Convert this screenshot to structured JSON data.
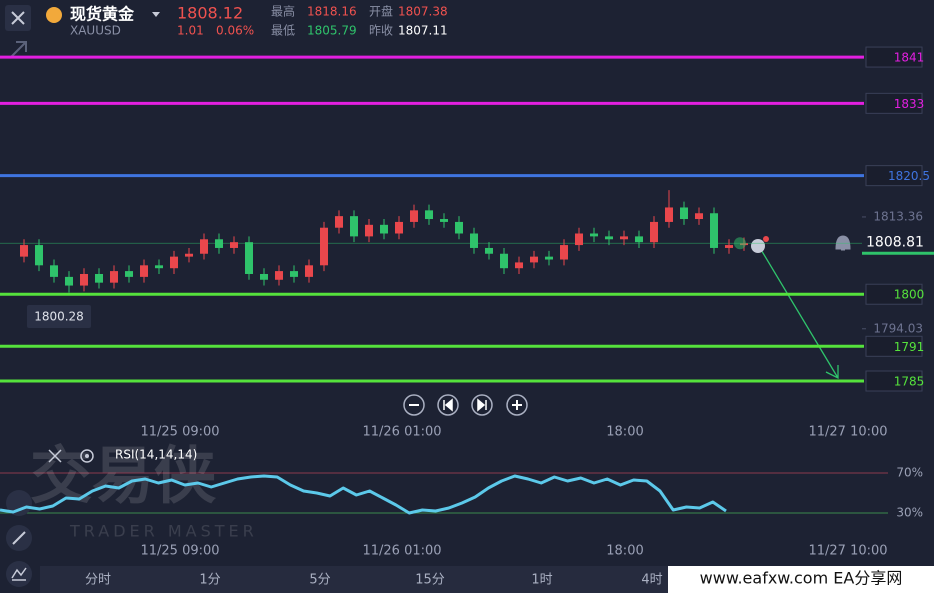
{
  "header": {
    "name": "现货黄金",
    "symbol": "XAUUSD",
    "price": "1808.12",
    "change": "1.01",
    "change_pct": "0.06%",
    "stats": [
      {
        "label": "最高",
        "value": "1818.16"
      },
      {
        "label": "开盘",
        "value": "1807.38"
      },
      {
        "label": "最低",
        "value": "1805.79"
      },
      {
        "label": "昨收",
        "value": "1807.11"
      }
    ]
  },
  "chart_data": [
    {
      "type": "candlestick",
      "open": [
        1806.5,
        1808.5,
        1805,
        1803,
        1801.5,
        1803.5,
        1802,
        1804,
        1803,
        1805,
        1804.5,
        1806.5,
        1807,
        1809.5,
        1808,
        1809,
        1803.5,
        1802.5,
        1804,
        1803,
        1805,
        1811.5,
        1813.5,
        1810,
        1812,
        1810.5,
        1812.5,
        1814.5,
        1813,
        1812.5,
        1810.5,
        1808,
        1807,
        1804.5,
        1805.5,
        1806.5,
        1806,
        1808.5,
        1810.5,
        1810,
        1809.5,
        1810,
        1809,
        1812.5,
        1815,
        1813,
        1814,
        1808,
        1808.5
      ],
      "high": [
        1809.5,
        1809.5,
        1806,
        1804,
        1804.5,
        1804.5,
        1805,
        1805,
        1806,
        1806,
        1807.5,
        1808,
        1810.5,
        1810.5,
        1810,
        1810,
        1804.5,
        1805,
        1805,
        1806,
        1812.5,
        1814.5,
        1814.5,
        1813,
        1813,
        1813.5,
        1815.5,
        1815.5,
        1814,
        1813.5,
        1811.5,
        1809,
        1808,
        1806.5,
        1807.5,
        1807.5,
        1809.5,
        1811.5,
        1811.5,
        1811,
        1811,
        1811,
        1813.5,
        1818,
        1816,
        1815,
        1815,
        1809.5,
        1809.8
      ],
      "low": [
        1805.5,
        1804,
        1802,
        1800.3,
        1800.5,
        1801,
        1801,
        1802,
        1802,
        1803.5,
        1803.5,
        1805.5,
        1806,
        1807,
        1807,
        1802.5,
        1801.5,
        1801.5,
        1802,
        1802,
        1804,
        1810.5,
        1809,
        1809,
        1809.5,
        1809.5,
        1811.5,
        1812,
        1811.5,
        1809.5,
        1807,
        1806,
        1803.5,
        1803.5,
        1804.5,
        1805,
        1805,
        1807.5,
        1809,
        1808.5,
        1808.5,
        1808,
        1808,
        1811.5,
        1812,
        1812,
        1807,
        1807,
        1807.5
      ],
      "close": [
        1808.5,
        1805,
        1803,
        1801.5,
        1803.5,
        1802,
        1804,
        1803,
        1805,
        1804.5,
        1806.5,
        1807,
        1809.5,
        1808,
        1809,
        1803.5,
        1802.5,
        1804,
        1803,
        1805,
        1811.5,
        1813.5,
        1810,
        1812,
        1810.5,
        1812.5,
        1814.5,
        1813,
        1812.5,
        1810.5,
        1808,
        1807,
        1804.5,
        1805.5,
        1806.5,
        1806,
        1808.5,
        1810.5,
        1810,
        1809.5,
        1810,
        1809,
        1812.5,
        1815,
        1813,
        1814,
        1808,
        1808.5,
        1808.8
      ],
      "up_color": "#e9474c",
      "down_color": "#2fc36b",
      "ylim": [
        1778,
        1850
      ],
      "yticks": [
        1813.36,
        1794.03
      ],
      "levels": [
        {
          "value": 1841,
          "color": "#e21fe0"
        },
        {
          "value": 1833,
          "color": "#e21fe0"
        },
        {
          "value": 1820.5,
          "color": "#3f74e0"
        },
        {
          "value": 1800,
          "color": "#55e23c"
        },
        {
          "value": 1791,
          "color": "#55e23c"
        },
        {
          "value": 1785,
          "color": "#55e23c"
        }
      ],
      "current_price": 1808.81,
      "low_marker": 1800.28,
      "time_labels": [
        "11/25 09:00",
        "11/26 01:00",
        "18:00",
        "11/27 10:00"
      ]
    },
    {
      "type": "line",
      "title": "RSI(14,14,14)",
      "color": "#5cc9ea",
      "values": [
        33,
        31,
        36,
        34,
        37,
        45,
        44,
        52,
        57,
        55,
        62,
        64,
        60,
        63,
        58,
        60,
        56,
        60,
        64,
        66,
        67,
        66,
        58,
        52,
        50,
        47,
        55,
        48,
        52,
        45,
        38,
        30,
        33,
        32,
        35,
        40,
        46,
        55,
        62,
        67,
        64,
        60,
        66,
        62,
        65,
        60,
        64,
        58,
        63,
        62,
        52,
        33,
        36,
        35,
        41,
        32
      ],
      "ylim": [
        20,
        100
      ],
      "yticks": [
        {
          "value": 70,
          "label": "70%"
        },
        {
          "value": 30,
          "label": "30%"
        }
      ],
      "time_labels": [
        "11/25 09:00",
        "11/26 01:00",
        "18:00",
        "11/27 10:00"
      ]
    }
  ],
  "brand": {
    "name": "交易侠",
    "subtitle": "TRADER MASTER"
  },
  "timeframes": [
    "分时",
    "1分",
    "5分",
    "15分",
    "1时",
    "4时"
  ],
  "watermark": "www.eafxw.com  EA分享网"
}
